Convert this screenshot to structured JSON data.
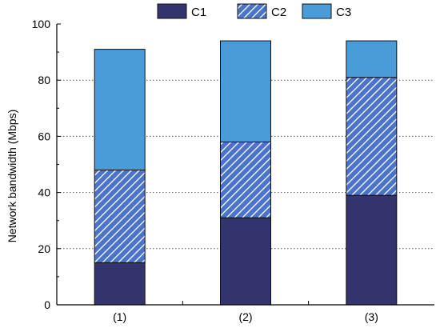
{
  "chart_data": {
    "type": "bar",
    "stacked": true,
    "categories": [
      "(1)",
      "(2)",
      "(3)"
    ],
    "series": [
      {
        "name": "C1",
        "values": [
          15,
          31,
          39
        ],
        "color": "#33336e",
        "pattern": "solid"
      },
      {
        "name": "C2",
        "values": [
          33,
          27,
          42
        ],
        "color": "#4a73c9",
        "pattern": "hatch"
      },
      {
        "name": "C3",
        "values": [
          43,
          36,
          13
        ],
        "color": "#4a9cd9",
        "pattern": "solid"
      }
    ],
    "title": "",
    "xlabel": "",
    "ylabel": "Network bandwidth (Mbps)",
    "ylim": [
      0,
      100
    ],
    "yticks": [
      "0",
      "20",
      "40",
      "60",
      "80",
      "100"
    ],
    "grid": "horizontal dotted",
    "legend_position": "top"
  }
}
